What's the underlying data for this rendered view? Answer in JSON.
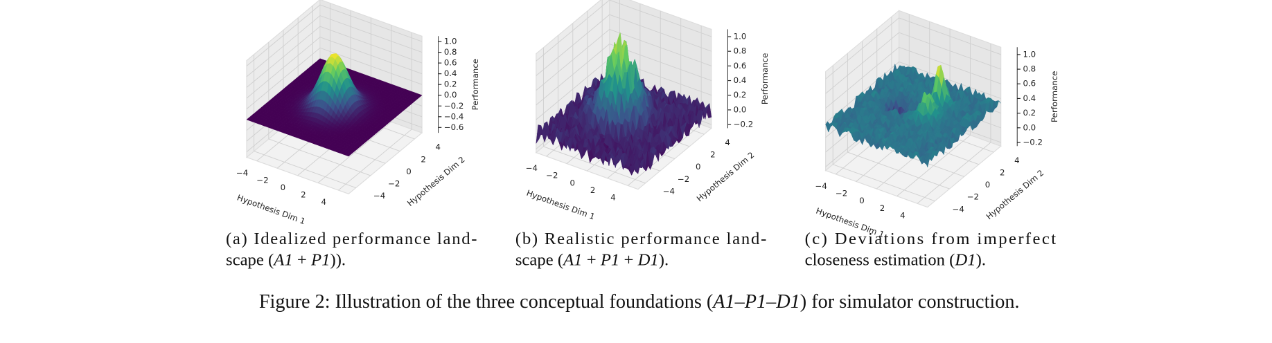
{
  "figures": [
    {
      "label_dim1": "Hypothesis Dim 1",
      "label_dim2": "Hypothesis Dim 2",
      "label_z": "Performance",
      "xticks": [
        {
          "value": -4,
          "label": "−4"
        },
        {
          "value": -2,
          "label": "−2"
        },
        0,
        2,
        4
      ],
      "yticks": [
        {
          "value": -4,
          "label": "−4"
        },
        {
          "value": -2,
          "label": "−2"
        },
        0,
        2,
        4
      ],
      "zlim": [
        -0.7,
        1.1
      ],
      "zticks": [
        {
          "value": -0.6,
          "label": "−0.6"
        },
        {
          "value": -0.4,
          "label": "−0.4"
        },
        {
          "value": -0.2,
          "label": "−0.2"
        },
        {
          "value": 0,
          "label": "0.0"
        },
        0.2,
        0.4,
        0.6,
        0.8,
        {
          "value": 1,
          "label": "1.0"
        }
      ],
      "caption": [
        [
          {
            "text": "(a) Idealized performance land-"
          }
        ],
        [
          {
            "text": "scape ("
          },
          {
            "text": "A1",
            "italic": true
          },
          {
            "text": " + "
          },
          {
            "text": "P1",
            "italic": true
          },
          {
            "text": "))."
          }
        ]
      ]
    },
    {
      "label_dim1": "Hypothesis Dim 1",
      "label_dim2": "Hypothesis Dim 2",
      "label_z": "Performance",
      "xticks": [
        {
          "value": -4,
          "label": "−4"
        },
        {
          "value": -2,
          "label": "−2"
        },
        0,
        2,
        4
      ],
      "yticks": [
        {
          "value": -4,
          "label": "−4"
        },
        {
          "value": -2,
          "label": "−2"
        },
        0,
        2,
        4
      ],
      "zlim": [
        -0.25,
        1.1
      ],
      "zticks": [
        {
          "value": -0.2,
          "label": "−0.2"
        },
        {
          "value": 0,
          "label": "0.0"
        },
        0.2,
        0.4,
        0.6,
        0.8,
        {
          "value": 1,
          "label": "1.0"
        }
      ],
      "caption": [
        [
          {
            "text": "(b) Realistic performance land-"
          }
        ],
        [
          {
            "text": "scape ("
          },
          {
            "text": "A1",
            "italic": true
          },
          {
            "text": " + "
          },
          {
            "text": "P1",
            "italic": true
          },
          {
            "text": " + "
          },
          {
            "text": "D1",
            "italic": true
          },
          {
            "text": ")."
          }
        ]
      ]
    },
    {
      "label_dim1": "Hypothesis Dim 1",
      "label_dim2": "Hypothesis Dim 2",
      "label_z": "Performance",
      "xticks": [
        {
          "value": -4,
          "label": "−4"
        },
        {
          "value": -2,
          "label": "−2"
        },
        0,
        2,
        4
      ],
      "yticks": [
        {
          "value": -4,
          "label": "−4"
        },
        {
          "value": -2,
          "label": "−2"
        },
        0,
        2,
        4
      ],
      "zlim": [
        -0.25,
        1.1
      ],
      "zticks": [
        {
          "value": -0.2,
          "label": "−0.2"
        },
        {
          "value": 0,
          "label": "0.0"
        },
        0.2,
        0.4,
        0.6,
        0.8,
        {
          "value": 1,
          "label": "1.0"
        }
      ],
      "caption": [
        [
          {
            "text": "(c) Deviations from imperfect"
          }
        ],
        [
          {
            "text": "closeness estimation ("
          },
          {
            "text": "D1",
            "italic": true
          },
          {
            "text": ")."
          }
        ]
      ]
    }
  ],
  "figure_caption": [
    {
      "text": "Figure 2: Illustration of the three conceptual foundations ("
    },
    {
      "text": "A1–P1–D1",
      "italic": true
    },
    {
      "text": ") for simulator construction."
    }
  ]
}
